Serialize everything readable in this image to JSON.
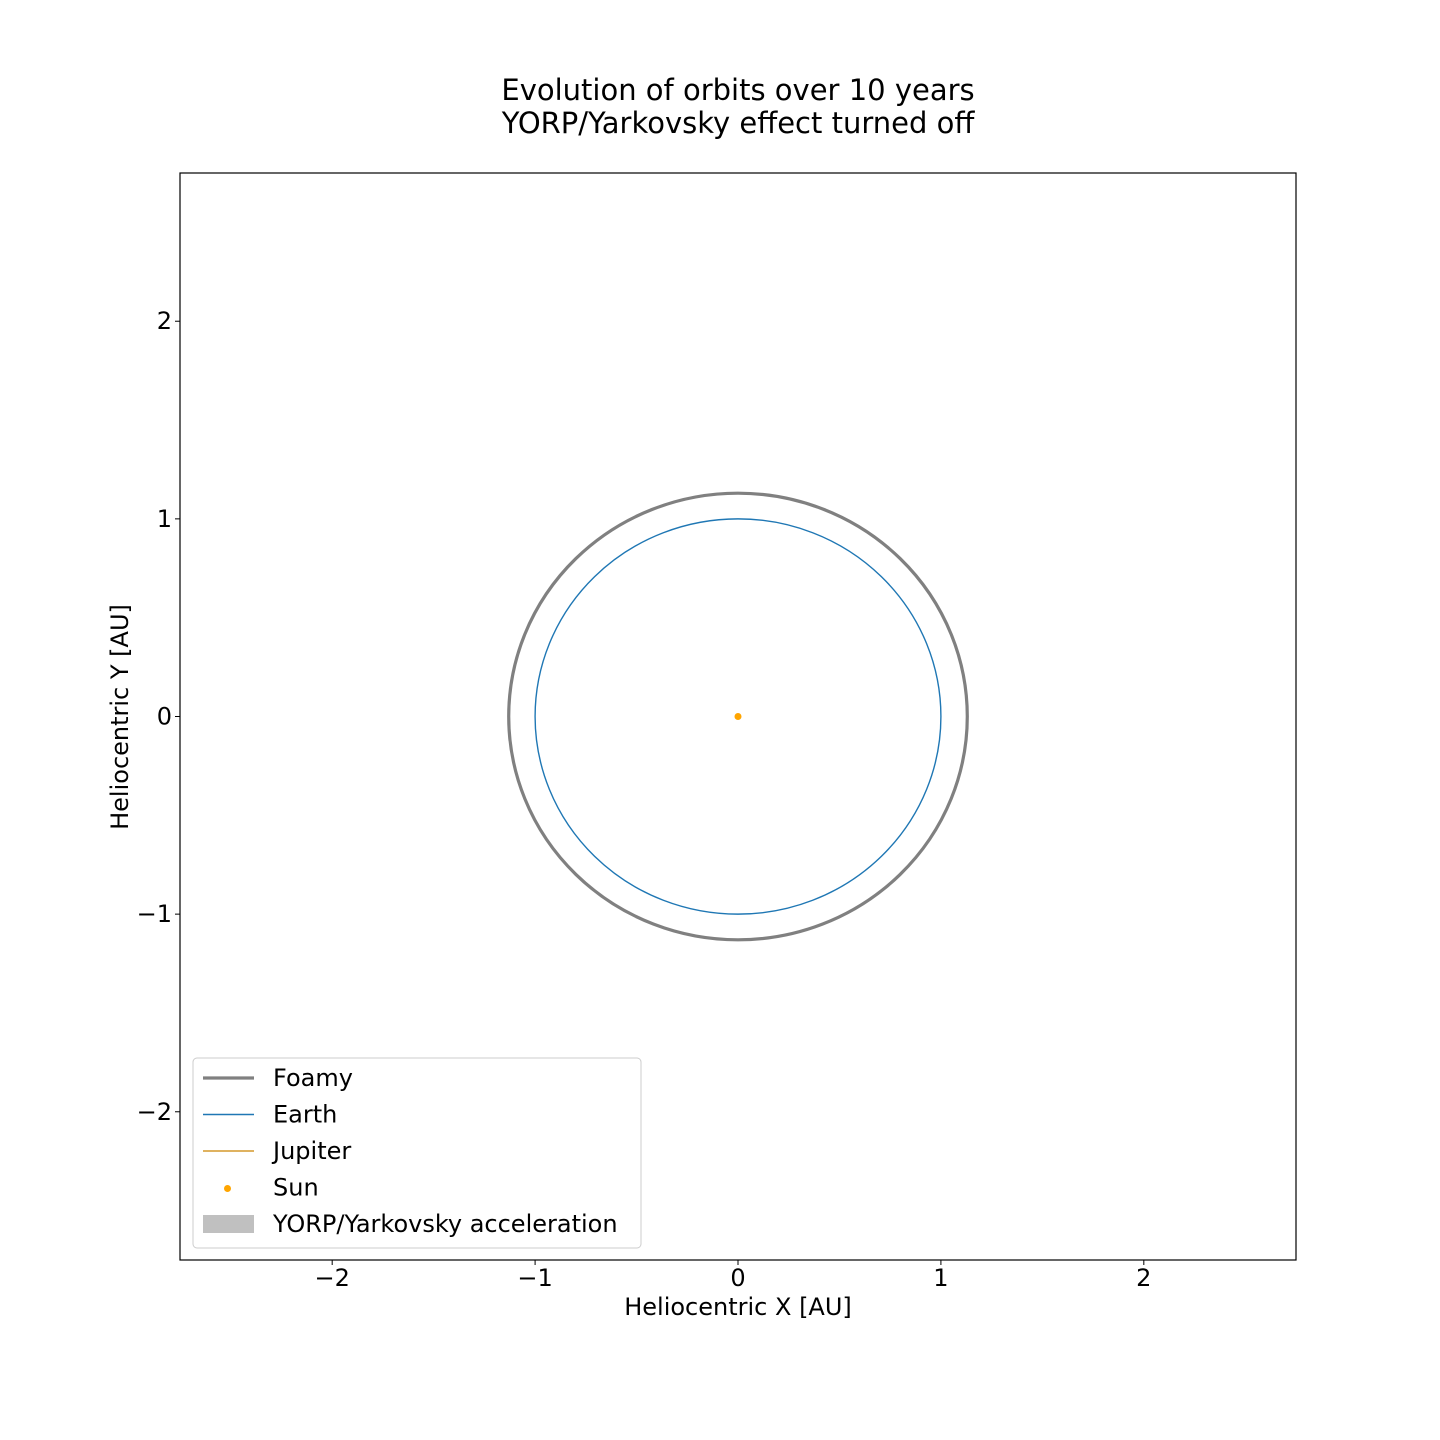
{
  "chart_data": {
    "type": "line",
    "title": [
      "Evolution of orbits over 10 years",
      "YORP/Yarkovsky effect turned off"
    ],
    "xlabel": "Heliocentric X [AU]",
    "ylabel": "Heliocentric Y [AU]",
    "xlim": [
      -2.75,
      2.75
    ],
    "ylim": [
      -2.75,
      2.75
    ],
    "xticks": [
      -2,
      -1,
      0,
      1,
      2
    ],
    "yticks": [
      -2,
      -1,
      0,
      1,
      2
    ],
    "xtick_labels": [
      "−2",
      "−1",
      "0",
      "1",
      "2"
    ],
    "ytick_labels": [
      "−2",
      "−1",
      "0",
      "1",
      "2"
    ],
    "grid": false,
    "legend_position": "lower-left",
    "series": [
      {
        "name": "Foamy",
        "kind": "orbit",
        "center": [
          0,
          0
        ],
        "rx": 1.13,
        "ry": 1.13,
        "color": "#808080"
      },
      {
        "name": "Earth",
        "kind": "orbit",
        "center": [
          0,
          0
        ],
        "rx": 1.0,
        "ry": 1.0,
        "color": "#1f77b4"
      },
      {
        "name": "Jupiter",
        "kind": "orbit",
        "center": [
          0,
          0
        ],
        "rx": 0,
        "ry": 0,
        "color": "#cc8400"
      },
      {
        "name": "Sun",
        "kind": "point",
        "x": 0,
        "y": 0,
        "color": "#ffa500"
      },
      {
        "name": "YORP/Yarkovsky acceleration",
        "kind": "area",
        "color": "#c0c0c0"
      }
    ]
  }
}
